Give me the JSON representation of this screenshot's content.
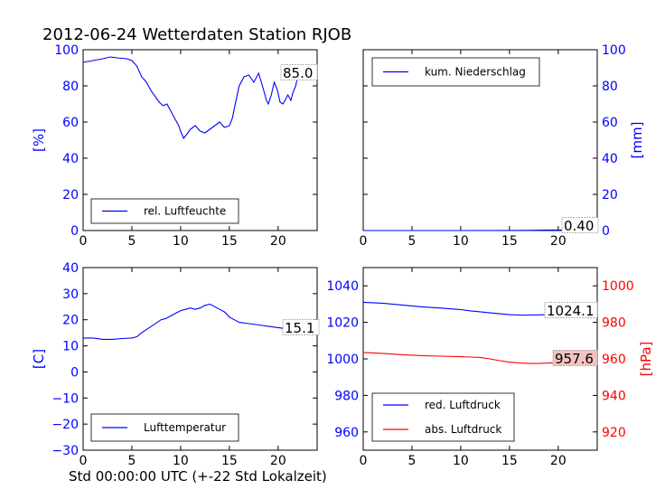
{
  "figure": {
    "title": "2012-06-24 Wetterdaten Station RJOB",
    "xlabel": "Std 00:00:00 UTC (+-22 Std Lokalzeit)"
  },
  "colors": {
    "blue": "#0000ff",
    "red": "#ff0000",
    "box_fill_red": "#f4c2c2"
  },
  "chart_data": [
    {
      "id": "humidity",
      "type": "line",
      "ylabel": "[%]",
      "xlim": [
        0,
        24
      ],
      "ylim": [
        0,
        100
      ],
      "xticks": [
        0,
        5,
        10,
        15,
        20
      ],
      "yticks": [
        0,
        20,
        40,
        60,
        80,
        100
      ],
      "series": [
        {
          "name": "rel. Luftfeuchte",
          "color": "#0000ff",
          "x": [
            0,
            1,
            2,
            2.8,
            3.5,
            4.5,
            5,
            5.5,
            6,
            6.5,
            7,
            7.4,
            7.8,
            8.2,
            8.6,
            9,
            9.4,
            9.8,
            10,
            10.3,
            10.6,
            11,
            11.5,
            12,
            12.5,
            13,
            13.5,
            14,
            14.5,
            15,
            15.3,
            15.6,
            16,
            16.5,
            17,
            17.5,
            18,
            18.5,
            18.8,
            19,
            19.3,
            19.6,
            19.9,
            20.2,
            20.5,
            20.8,
            21,
            21.3,
            21.5,
            21.8,
            22,
            22.2,
            22.5,
            23,
            23.4
          ],
          "y": [
            93,
            94,
            95,
            96,
            95.5,
            95,
            94,
            91,
            85,
            82,
            77,
            74,
            71,
            69,
            70,
            66,
            62,
            58,
            55,
            51,
            53,
            56,
            58,
            55,
            54,
            56,
            58,
            60,
            57,
            58,
            62,
            70,
            80,
            85,
            86,
            82,
            87,
            78,
            72,
            70,
            75,
            82,
            78,
            71,
            70,
            73,
            75,
            72,
            76,
            80,
            85,
            88,
            84,
            85,
            85
          ]
        }
      ],
      "annotation": "85.0",
      "legend": "lower-left"
    },
    {
      "id": "precipitation",
      "type": "line",
      "ylabel": "[mm]",
      "xlim": [
        0,
        24
      ],
      "ylim": [
        0,
        100
      ],
      "xticks": [
        0,
        5,
        10,
        15,
        20
      ],
      "yticks": [
        0,
        20,
        40,
        60,
        80,
        100
      ],
      "series": [
        {
          "name": "kum. Niederschlag",
          "color": "#0000ff",
          "x": [
            0,
            5,
            10,
            15,
            17,
            18.5,
            20,
            21,
            22,
            23,
            24
          ],
          "y": [
            0,
            0,
            0,
            0.05,
            0.1,
            0.2,
            0.3,
            0.35,
            0.38,
            0.4,
            0.4
          ]
        }
      ],
      "annotation": "0.40",
      "legend": "top-left"
    },
    {
      "id": "temperature",
      "type": "line",
      "ylabel": "[C]",
      "xlim": [
        0,
        24
      ],
      "ylim": [
        -30,
        40
      ],
      "xticks": [
        0,
        5,
        10,
        15,
        20
      ],
      "yticks": [
        -30,
        -20,
        -10,
        0,
        10,
        20,
        30,
        40
      ],
      "series": [
        {
          "name": "Lufttemperatur",
          "color": "#0000ff",
          "x": [
            0,
            1,
            2,
            3,
            4,
            5,
            5.5,
            6,
            7,
            8,
            8.5,
            9,
            9.5,
            10,
            10.5,
            11,
            11.5,
            12,
            12.5,
            13,
            13.5,
            14,
            14.5,
            15,
            15.5,
            16,
            17,
            18,
            19,
            20,
            21,
            22,
            23,
            24
          ],
          "y": [
            13,
            13,
            12.5,
            12.5,
            12.8,
            13,
            13.5,
            15,
            17.5,
            20,
            20.5,
            21.5,
            22.5,
            23.5,
            24,
            24.5,
            24,
            24.5,
            25.5,
            26,
            25,
            24,
            23,
            21,
            20,
            19,
            18.5,
            18,
            17.5,
            17,
            16.5,
            16,
            15.5,
            15
          ]
        }
      ],
      "annotation": "15.1",
      "legend": "lower-left"
    },
    {
      "id": "pressure",
      "type": "line",
      "ylabel": "[hPa]",
      "xlim": [
        0,
        24
      ],
      "ylim_left": [
        950,
        1050
      ],
      "ylim_right": [
        910,
        1010
      ],
      "xticks": [
        0,
        5,
        10,
        15,
        20
      ],
      "yticks_left": [
        960,
        980,
        1000,
        1020,
        1040
      ],
      "yticks_right": [
        920,
        940,
        960,
        980,
        1000
      ],
      "series": [
        {
          "name": "red. Luftdruck",
          "color": "#0000ff",
          "axis": "left",
          "x": [
            0,
            2,
            4,
            6,
            8,
            10,
            11,
            12,
            13,
            14,
            15,
            16,
            17,
            18,
            19,
            20,
            21,
            22,
            23,
            24
          ],
          "y": [
            1031,
            1030.5,
            1029.5,
            1028.5,
            1027.8,
            1027,
            1026.3,
            1025.8,
            1025.2,
            1024.7,
            1024.2,
            1024,
            1024,
            1024.1,
            1024.2,
            1024.4,
            1024.5,
            1024.3,
            1024.2,
            1024.1
          ]
        },
        {
          "name": "abs. Luftdruck",
          "color": "#ff0000",
          "axis": "right",
          "x": [
            0,
            2,
            4,
            6,
            8,
            10,
            11,
            12,
            13,
            14,
            15,
            16,
            17,
            18,
            19,
            20,
            21,
            22,
            23,
            24
          ],
          "y": [
            963.5,
            963,
            962.3,
            961.8,
            961.5,
            961.2,
            961,
            960.8,
            960,
            959,
            958.2,
            957.8,
            957.5,
            957.5,
            957.7,
            957.8,
            957.7,
            957.6,
            957.6,
            957.6
          ]
        }
      ],
      "annotations": [
        {
          "text": "1024.1",
          "axis": "left",
          "style": "plain"
        },
        {
          "text": "957.6",
          "axis": "right",
          "style": "pink"
        }
      ],
      "legend": "lower-left"
    }
  ]
}
